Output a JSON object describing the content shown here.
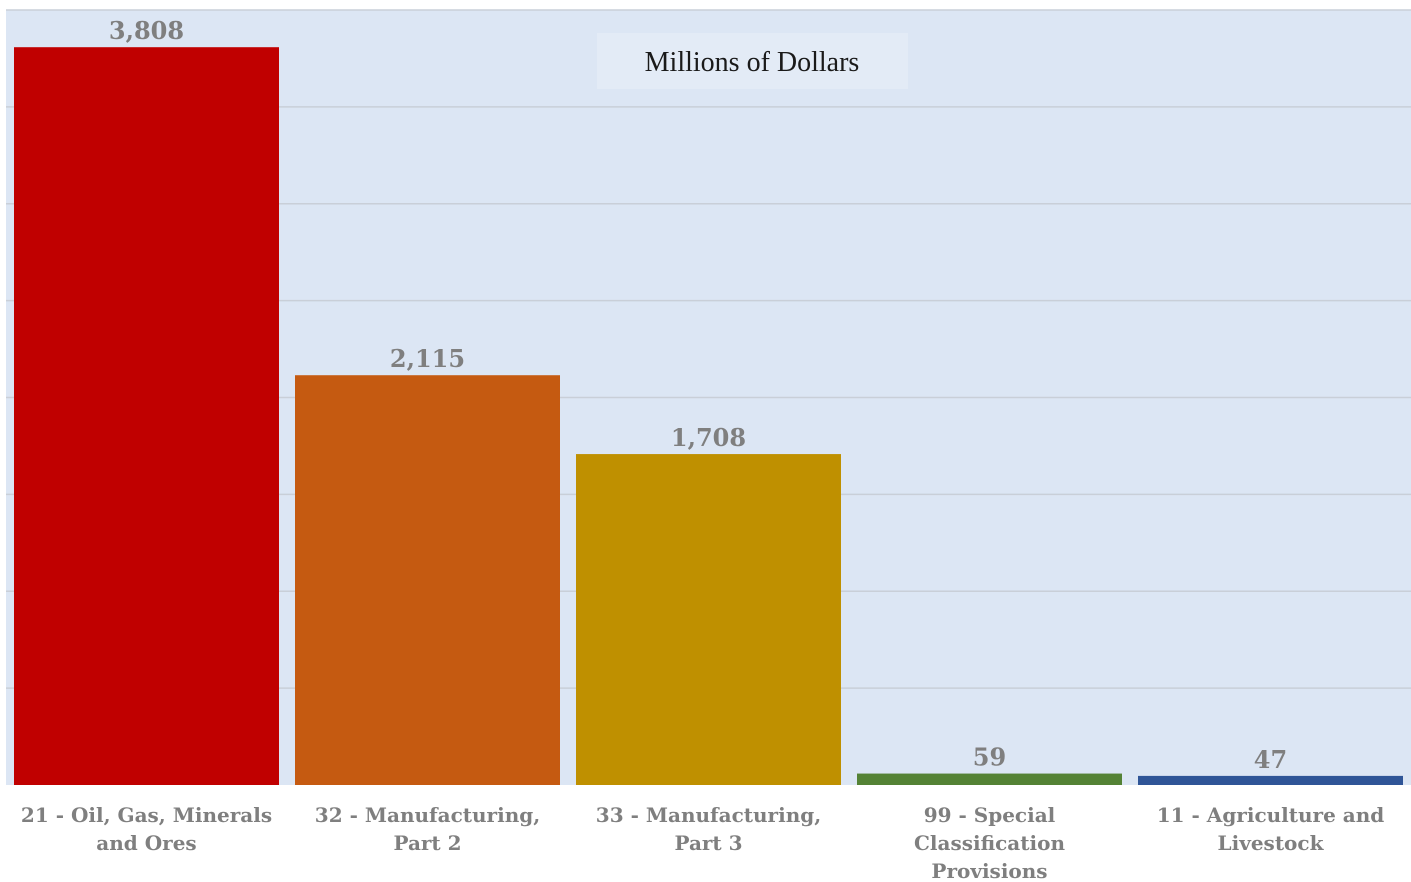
{
  "chart_data": {
    "type": "bar",
    "title": "",
    "unit_label": "Millions of Dollars",
    "xlabel": "",
    "ylabel": "",
    "ylim": [
      0,
      4000
    ],
    "grid": true,
    "categories": [
      [
        "21 - Oil, Gas, Minerals",
        "and Ores"
      ],
      [
        "32 - Manufacturing,",
        "Part 2"
      ],
      [
        "33 - Manufacturing,",
        "Part 3"
      ],
      [
        "99 - Special",
        "Classification",
        "Provisions"
      ],
      [
        "11 - Agriculture and",
        "Livestock"
      ]
    ],
    "values": [
      3808,
      2115,
      1708,
      59,
      47
    ],
    "value_labels": [
      "3,808",
      "2,115",
      "1,708",
      "59",
      "47"
    ],
    "colors": [
      "#c00000",
      "#c55a11",
      "#bf9000",
      "#548235",
      "#2f5597"
    ]
  },
  "style": {
    "plot_background": "#dce6f4",
    "gridline_color": "#c9cfd8",
    "label_color": "#7f7f7f"
  }
}
